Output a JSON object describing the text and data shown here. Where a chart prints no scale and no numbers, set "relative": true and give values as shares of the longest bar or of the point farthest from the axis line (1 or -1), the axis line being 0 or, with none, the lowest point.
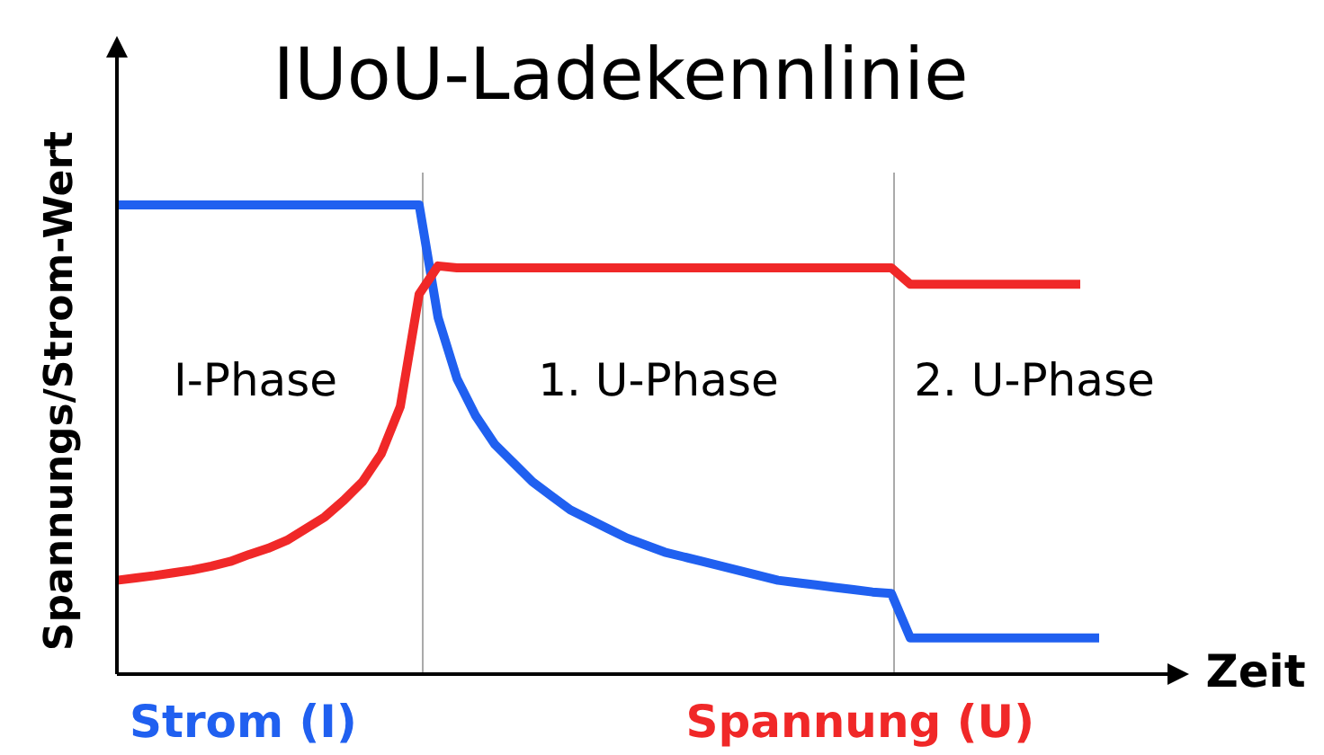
{
  "chart_data": {
    "type": "line",
    "title": "IUoU-Ladekennlinie",
    "xlabel": "Zeit",
    "ylabel": "Spannungs/Strom-Wert",
    "relative": true,
    "marker": "none",
    "line_style": "solid",
    "categories": [
      null,
      null,
      null,
      null,
      null,
      null,
      null,
      null,
      null,
      null,
      null,
      null,
      null,
      null,
      null,
      null,
      null,
      null,
      null,
      null,
      null,
      null,
      null,
      null,
      null,
      null,
      null,
      null,
      null,
      null,
      null,
      null,
      null,
      null,
      null,
      null,
      null,
      null,
      null,
      null,
      null,
      null,
      null,
      null,
      null,
      null,
      null,
      null,
      null,
      null,
      null,
      null,
      null,
      null,
      null,
      null,
      null
    ],
    "annotations": [
      "I-Phase",
      "1. U-Phase",
      "2. U-Phase"
    ],
    "series": [
      {
        "name": "Strom (I)",
        "color": "#2060f0",
        "values": [
          1,
          1,
          1,
          1,
          1,
          1,
          1,
          1,
          1,
          1,
          1,
          1,
          1,
          1,
          1,
          1,
          1,
          0.76,
          0.63,
          0.55,
          0.49,
          0.45,
          0.41,
          0.38,
          0.35,
          0.33,
          0.31,
          0.29,
          0.275,
          0.26,
          0.25,
          0.24,
          0.23,
          0.22,
          0.21,
          0.2,
          0.195,
          0.19,
          0.185,
          0.18,
          0.175,
          0.172,
          0.077,
          0.077,
          0.077,
          0.077,
          0.077,
          0.077,
          0.077,
          0.077,
          0.077,
          0.077,
          0.077,
          null,
          null,
          null,
          null
        ]
      },
      {
        "name": "Spannung (U)",
        "color": "#f02828",
        "values": [
          0.2,
          0.205,
          0.21,
          0.216,
          0.222,
          0.23,
          0.24,
          0.255,
          0.268,
          0.285,
          0.31,
          0.335,
          0.37,
          0.41,
          0.47,
          0.57,
          0.81,
          0.87,
          0.866,
          0.866,
          0.866,
          0.866,
          0.866,
          0.866,
          0.866,
          0.866,
          0.866,
          0.866,
          0.866,
          0.866,
          0.866,
          0.866,
          0.866,
          0.866,
          0.866,
          0.866,
          0.866,
          0.866,
          0.866,
          0.866,
          0.866,
          0.866,
          0.831,
          0.831,
          0.831,
          0.831,
          0.831,
          0.831,
          0.831,
          0.831,
          0.831,
          0.831,
          null,
          null,
          null,
          null,
          null
        ]
      }
    ]
  }
}
